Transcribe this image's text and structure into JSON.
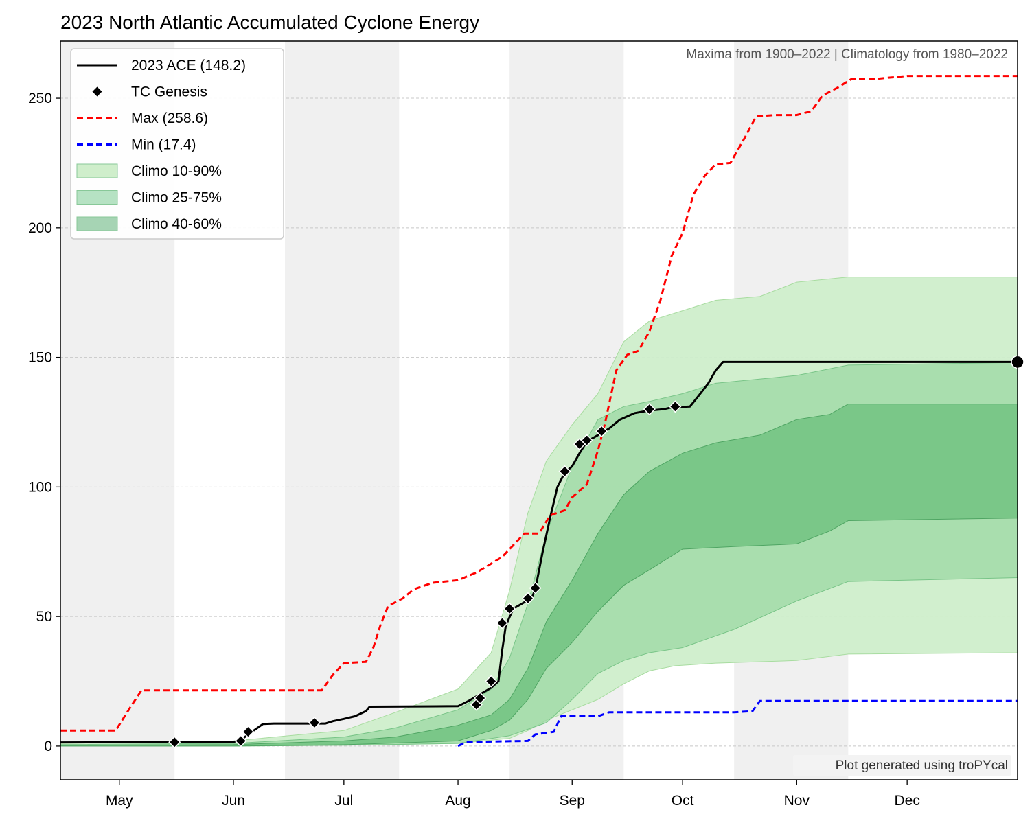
{
  "chart_data": {
    "type": "line",
    "title": "2023 North Atlantic Accumulated Cyclone Energy",
    "subtitle": "Maxima from 1900–2022 | Climatology from 1980–2022",
    "credit": "Plot generated using troPYcal",
    "xlabel": "",
    "ylabel": "",
    "x_ticks": [
      "May",
      "Jun",
      "Jul",
      "Aug",
      "Sep",
      "Oct",
      "Nov",
      "Dec"
    ],
    "y_ticks": [
      0,
      50,
      100,
      150,
      200,
      250
    ],
    "ylim": [
      -13,
      272
    ],
    "xlim": [
      "2023-04-15",
      "2023-12-31"
    ],
    "grid": "horizontal dashed",
    "legend_position": "top-left",
    "shaded_periods": [
      [
        "2023-04-15",
        "2023-05-16"
      ],
      [
        "2023-06-15",
        "2023-07-16"
      ],
      [
        "2023-08-15",
        "2023-09-15"
      ],
      [
        "2023-10-15",
        "2023-11-15"
      ]
    ],
    "legend": [
      {
        "label": "2023 ACE (148.2)",
        "kind": "line",
        "color": "#000000"
      },
      {
        "label": "TC Genesis",
        "kind": "marker",
        "color": "#000000"
      },
      {
        "label": "Max (258.6)",
        "kind": "dashed",
        "color": "#ff0000"
      },
      {
        "label": "Min (17.4)",
        "kind": "dashed",
        "color": "#0000ff"
      },
      {
        "label": "Climo 10-90%",
        "kind": "patch",
        "color": "#cfeecb"
      },
      {
        "label": "Climo 25-75%",
        "kind": "patch",
        "color": "#b6e2c3"
      },
      {
        "label": "Climo 40-60%",
        "kind": "patch",
        "color": "#a6d4b4"
      }
    ],
    "series": [
      {
        "name": "2023 ACE (148.2)",
        "color": "#000000",
        "style": "solid",
        "points": [
          [
            "2023-04-15",
            1.4
          ],
          [
            "2023-06-01",
            1.6
          ],
          [
            "2023-06-03",
            2.4
          ],
          [
            "2023-06-06",
            5.5
          ],
          [
            "2023-06-09",
            8.5
          ],
          [
            "2023-06-12",
            8.7
          ],
          [
            "2023-06-26",
            8.7
          ],
          [
            "2023-06-28",
            9.6
          ],
          [
            "2023-07-01",
            10.5
          ],
          [
            "2023-07-04",
            11.5
          ],
          [
            "2023-07-07",
            13.5
          ],
          [
            "2023-07-08",
            15.2
          ],
          [
            "2023-08-01",
            15.4
          ],
          [
            "2023-08-04",
            17.5
          ],
          [
            "2023-08-07",
            20.0
          ],
          [
            "2023-08-10",
            22.5
          ],
          [
            "2023-08-12",
            25.0
          ],
          [
            "2023-08-13",
            37.0
          ],
          [
            "2023-08-14",
            46.5
          ],
          [
            "2023-08-16",
            53.0
          ],
          [
            "2023-08-19",
            55.5
          ],
          [
            "2023-08-21",
            57.0
          ],
          [
            "2023-08-22",
            60.5
          ],
          [
            "2023-08-24",
            75.0
          ],
          [
            "2023-08-26",
            88.0
          ],
          [
            "2023-08-28",
            100.0
          ],
          [
            "2023-08-30",
            105.5
          ],
          [
            "2023-09-01",
            108.0
          ],
          [
            "2023-09-03",
            113.0
          ],
          [
            "2023-09-05",
            117.5
          ],
          [
            "2023-09-08",
            120.0
          ],
          [
            "2023-09-11",
            122.5
          ],
          [
            "2023-09-14",
            126.0
          ],
          [
            "2023-09-18",
            128.5
          ],
          [
            "2023-09-22",
            129.5
          ],
          [
            "2023-09-26",
            130.0
          ],
          [
            "2023-09-28",
            130.7
          ],
          [
            "2023-10-03",
            131.0
          ],
          [
            "2023-10-05",
            134.5
          ],
          [
            "2023-10-08",
            140.0
          ],
          [
            "2023-10-10",
            145.0
          ],
          [
            "2023-10-12",
            148.2
          ],
          [
            "2023-12-31",
            148.2
          ]
        ]
      },
      {
        "name": "Max (258.6)",
        "color": "#ff0000",
        "style": "dashed",
        "points": [
          [
            "2023-04-15",
            6.0
          ],
          [
            "2023-04-30",
            6.0
          ],
          [
            "2023-05-04",
            15.0
          ],
          [
            "2023-05-07",
            21.5
          ],
          [
            "2023-06-01",
            21.5
          ],
          [
            "2023-06-25",
            21.5
          ],
          [
            "2023-06-28",
            27.5
          ],
          [
            "2023-07-01",
            32.0
          ],
          [
            "2023-07-07",
            32.5
          ],
          [
            "2023-07-09",
            38.0
          ],
          [
            "2023-07-11",
            47.0
          ],
          [
            "2023-07-13",
            54.0
          ],
          [
            "2023-07-17",
            57.0
          ],
          [
            "2023-07-20",
            60.5
          ],
          [
            "2023-07-25",
            63.0
          ],
          [
            "2023-08-01",
            64.0
          ],
          [
            "2023-08-06",
            67.0
          ],
          [
            "2023-08-09",
            69.5
          ],
          [
            "2023-08-13",
            73.0
          ],
          [
            "2023-08-16",
            77.5
          ],
          [
            "2023-08-19",
            82.0
          ],
          [
            "2023-08-23",
            82.0
          ],
          [
            "2023-08-26",
            89.0
          ],
          [
            "2023-08-30",
            91.0
          ],
          [
            "2023-09-01",
            96.0
          ],
          [
            "2023-09-05",
            101.0
          ],
          [
            "2023-09-08",
            114.0
          ],
          [
            "2023-09-10",
            125.0
          ],
          [
            "2023-09-13",
            145.0
          ],
          [
            "2023-09-16",
            151.0
          ],
          [
            "2023-09-19",
            152.5
          ],
          [
            "2023-09-22",
            160.0
          ],
          [
            "2023-09-25",
            172.0
          ],
          [
            "2023-09-28",
            189.0
          ],
          [
            "2023-10-01",
            198.0
          ],
          [
            "2023-10-04",
            213.0
          ],
          [
            "2023-10-07",
            220.0
          ],
          [
            "2023-10-10",
            224.5
          ],
          [
            "2023-10-14",
            225.0
          ],
          [
            "2023-10-18",
            235.0
          ],
          [
            "2023-10-21",
            243.0
          ],
          [
            "2023-10-26",
            243.5
          ],
          [
            "2023-11-01",
            243.5
          ],
          [
            "2023-11-05",
            245.0
          ],
          [
            "2023-11-08",
            251.0
          ],
          [
            "2023-11-12",
            254.0
          ],
          [
            "2023-11-16",
            257.5
          ],
          [
            "2023-11-23",
            257.5
          ],
          [
            "2023-12-01",
            258.6
          ],
          [
            "2023-12-31",
            258.6
          ]
        ]
      },
      {
        "name": "Min (17.4)",
        "color": "#0000ff",
        "style": "dashed",
        "points": [
          [
            "2023-08-01",
            0.0
          ],
          [
            "2023-08-03",
            1.5
          ],
          [
            "2023-08-12",
            1.8
          ],
          [
            "2023-08-20",
            2.0
          ],
          [
            "2023-08-22",
            4.5
          ],
          [
            "2023-08-27",
            5.5
          ],
          [
            "2023-08-29",
            11.5
          ],
          [
            "2023-09-08",
            11.5
          ],
          [
            "2023-09-11",
            13.0
          ],
          [
            "2023-10-15",
            13.0
          ],
          [
            "2023-10-20",
            13.5
          ],
          [
            "2023-10-22",
            17.4
          ],
          [
            "2023-12-31",
            17.4
          ]
        ]
      }
    ],
    "genesis_markers": [
      [
        "2023-05-16",
        1.5
      ],
      [
        "2023-06-03",
        2.0
      ],
      [
        "2023-06-05",
        5.5
      ],
      [
        "2023-06-23",
        9.0
      ],
      [
        "2023-08-06",
        16.0
      ],
      [
        "2023-08-07",
        18.5
      ],
      [
        "2023-08-10",
        25.0
      ],
      [
        "2023-08-13",
        47.5
      ],
      [
        "2023-08-15",
        53.0
      ],
      [
        "2023-08-20",
        57.0
      ],
      [
        "2023-08-22",
        61.0
      ],
      [
        "2023-08-30",
        106.0
      ],
      [
        "2023-09-03",
        116.5
      ],
      [
        "2023-09-05",
        118.0
      ],
      [
        "2023-09-09",
        121.5
      ],
      [
        "2023-09-22",
        130.0
      ],
      [
        "2023-09-29",
        131.0
      ]
    ],
    "end_marker": [
      "2023-12-31",
      148.2
    ],
    "bands": [
      {
        "name": "Climo 10-90%",
        "color": "#cfeecb",
        "lower": [
          [
            "2023-04-15",
            0.0
          ],
          [
            "2023-06-01",
            0.0
          ],
          [
            "2023-07-01",
            0.3
          ],
          [
            "2023-08-01",
            1.0
          ],
          [
            "2023-08-15",
            3.0
          ],
          [
            "2023-08-20",
            6.0
          ],
          [
            "2023-08-25",
            10.0
          ],
          [
            "2023-09-01",
            14.0
          ],
          [
            "2023-09-08",
            18.0
          ],
          [
            "2023-09-15",
            24.0
          ],
          [
            "2023-09-22",
            29.0
          ],
          [
            "2023-09-29",
            31.0
          ],
          [
            "2023-10-10",
            32.0
          ],
          [
            "2023-11-01",
            33.0
          ],
          [
            "2023-11-15",
            35.5
          ],
          [
            "2023-12-31",
            36.0
          ]
        ],
        "upper": [
          [
            "2023-04-15",
            1.0
          ],
          [
            "2023-06-01",
            2.0
          ],
          [
            "2023-07-01",
            6.0
          ],
          [
            "2023-07-15",
            13.0
          ],
          [
            "2023-08-01",
            22.0
          ],
          [
            "2023-08-10",
            36.0
          ],
          [
            "2023-08-15",
            60.0
          ],
          [
            "2023-08-20",
            90.0
          ],
          [
            "2023-08-25",
            110.0
          ],
          [
            "2023-09-01",
            124.0
          ],
          [
            "2023-09-08",
            136.0
          ],
          [
            "2023-09-15",
            156.0
          ],
          [
            "2023-09-22",
            164.0
          ],
          [
            "2023-10-01",
            168.0
          ],
          [
            "2023-10-10",
            172.0
          ],
          [
            "2023-10-22",
            173.5
          ],
          [
            "2023-11-01",
            179.0
          ],
          [
            "2023-11-15",
            181.0
          ],
          [
            "2023-12-31",
            181.0
          ]
        ]
      },
      {
        "name": "Climo 25-75%",
        "color": "#9bd8a3",
        "lower": [
          [
            "2023-04-15",
            0.0
          ],
          [
            "2023-06-01",
            0.0
          ],
          [
            "2023-07-01",
            0.3
          ],
          [
            "2023-08-01",
            1.0
          ],
          [
            "2023-08-15",
            4.0
          ],
          [
            "2023-08-25",
            9.0
          ],
          [
            "2023-09-01",
            18.0
          ],
          [
            "2023-09-08",
            28.0
          ],
          [
            "2023-09-15",
            33.0
          ],
          [
            "2023-09-22",
            36.0
          ],
          [
            "2023-10-01",
            38.0
          ],
          [
            "2023-10-15",
            45.0
          ],
          [
            "2023-11-01",
            56.0
          ],
          [
            "2023-11-15",
            63.5
          ],
          [
            "2023-12-31",
            65.0
          ]
        ],
        "upper": [
          [
            "2023-04-15",
            0.6
          ],
          [
            "2023-06-01",
            1.0
          ],
          [
            "2023-07-01",
            3.5
          ],
          [
            "2023-07-15",
            7.0
          ],
          [
            "2023-08-01",
            14.0
          ],
          [
            "2023-08-10",
            22.0
          ],
          [
            "2023-08-15",
            34.0
          ],
          [
            "2023-08-20",
            55.0
          ],
          [
            "2023-08-25",
            82.0
          ],
          [
            "2023-09-01",
            108.0
          ],
          [
            "2023-09-08",
            126.0
          ],
          [
            "2023-09-15",
            131.0
          ],
          [
            "2023-09-22",
            133.0
          ],
          [
            "2023-10-01",
            136.0
          ],
          [
            "2023-10-10",
            140.0
          ],
          [
            "2023-11-01",
            143.0
          ],
          [
            "2023-11-15",
            147.0
          ],
          [
            "2023-12-31",
            148.0
          ]
        ]
      },
      {
        "name": "Climo 40-60%",
        "color": "#6bbf7b",
        "lower": [
          [
            "2023-04-15",
            0.0
          ],
          [
            "2023-06-01",
            0.0
          ],
          [
            "2023-07-01",
            0.5
          ],
          [
            "2023-08-01",
            2.0
          ],
          [
            "2023-08-10",
            6.0
          ],
          [
            "2023-08-15",
            10.0
          ],
          [
            "2023-08-20",
            18.0
          ],
          [
            "2023-08-25",
            30.0
          ],
          [
            "2023-09-01",
            40.0
          ],
          [
            "2023-09-08",
            52.0
          ],
          [
            "2023-09-15",
            62.0
          ],
          [
            "2023-09-22",
            68.0
          ],
          [
            "2023-10-01",
            76.0
          ],
          [
            "2023-10-15",
            77.0
          ],
          [
            "2023-11-01",
            78.0
          ],
          [
            "2023-11-10",
            83.0
          ],
          [
            "2023-11-15",
            87.0
          ],
          [
            "2023-12-31",
            88.0
          ]
        ],
        "upper": [
          [
            "2023-04-15",
            0.3
          ],
          [
            "2023-06-01",
            0.6
          ],
          [
            "2023-07-01",
            2.0
          ],
          [
            "2023-07-15",
            3.5
          ],
          [
            "2023-08-01",
            8.0
          ],
          [
            "2023-08-10",
            12.0
          ],
          [
            "2023-08-15",
            18.0
          ],
          [
            "2023-08-20",
            30.0
          ],
          [
            "2023-08-25",
            48.0
          ],
          [
            "2023-09-01",
            64.0
          ],
          [
            "2023-09-08",
            82.0
          ],
          [
            "2023-09-15",
            97.0
          ],
          [
            "2023-09-22",
            106.0
          ],
          [
            "2023-10-01",
            113.0
          ],
          [
            "2023-10-10",
            117.0
          ],
          [
            "2023-10-22",
            120.0
          ],
          [
            "2023-11-01",
            126.0
          ],
          [
            "2023-11-10",
            128.0
          ],
          [
            "2023-11-15",
            132.0
          ],
          [
            "2023-12-31",
            132.0
          ]
        ]
      }
    ]
  }
}
